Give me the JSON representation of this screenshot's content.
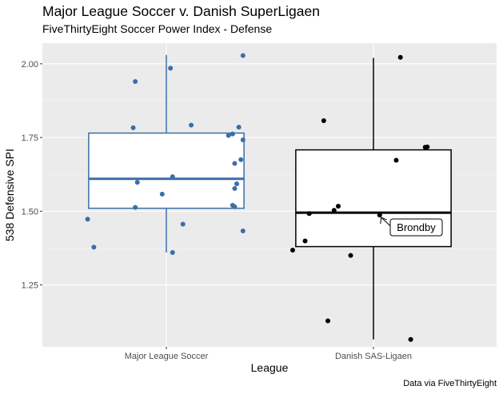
{
  "chart_data": {
    "type": "boxplot",
    "title": "Major League Soccer v. Danish SuperLigaen",
    "subtitle": "FiveThirtyEight Soccer Power Index - Defense",
    "xlabel": "League",
    "ylabel": "538 Defensive SPI",
    "caption": "Data via FiveThirtyEight",
    "ylim": [
      1.04,
      2.07
    ],
    "yticks": [
      1.25,
      1.5,
      1.75,
      2.0
    ],
    "ytick_labels": [
      "1.25",
      "1.50",
      "1.75",
      "2.00"
    ],
    "categories": [
      "Major League Soccer",
      "Danish SAS-Ligaen"
    ],
    "grid": true,
    "boxes": [
      {
        "category": "Major League Soccer",
        "color": "#3b6ea8",
        "whisker_low": 1.36,
        "q1": 1.51,
        "median": 1.61,
        "q3": 1.765,
        "whisker_high": 2.03,
        "points": [
          {
            "x": -0.38,
            "y": 1.473
          },
          {
            "x": -0.35,
            "y": 1.378
          },
          {
            "x": -0.15,
            "y": 1.94
          },
          {
            "x": -0.16,
            "y": 1.783
          },
          {
            "x": -0.14,
            "y": 1.598
          },
          {
            "x": -0.15,
            "y": 1.513
          },
          {
            "x": -0.02,
            "y": 1.558
          },
          {
            "x": 0.02,
            "y": 1.985
          },
          {
            "x": 0.03,
            "y": 1.36
          },
          {
            "x": 0.03,
            "y": 1.617
          },
          {
            "x": 0.08,
            "y": 1.456
          },
          {
            "x": 0.12,
            "y": 1.792
          },
          {
            "x": 0.3,
            "y": 1.757
          },
          {
            "x": 0.32,
            "y": 1.762
          },
          {
            "x": 0.35,
            "y": 1.785
          },
          {
            "x": 0.37,
            "y": 1.742
          },
          {
            "x": 0.33,
            "y": 1.662
          },
          {
            "x": 0.36,
            "y": 1.675
          },
          {
            "x": 0.33,
            "y": 1.577
          },
          {
            "x": 0.34,
            "y": 1.593
          },
          {
            "x": 0.32,
            "y": 1.52
          },
          {
            "x": 0.33,
            "y": 1.515
          },
          {
            "x": 0.37,
            "y": 1.433
          },
          {
            "x": 0.37,
            "y": 2.028
          }
        ]
      },
      {
        "category": "Danish SAS-Ligaen",
        "color": "#000000",
        "whisker_low": 1.065,
        "q1": 1.38,
        "median": 1.495,
        "q3": 1.708,
        "whisker_high": 2.02,
        "points": [
          {
            "x": -0.39,
            "y": 1.368
          },
          {
            "x": -0.33,
            "y": 1.399
          },
          {
            "x": -0.31,
            "y": 1.492
          },
          {
            "x": -0.24,
            "y": 1.807
          },
          {
            "x": -0.19,
            "y": 1.503
          },
          {
            "x": -0.17,
            "y": 1.517
          },
          {
            "x": -0.22,
            "y": 1.128
          },
          {
            "x": -0.11,
            "y": 1.35
          },
          {
            "x": 0.03,
            "y": 1.487
          },
          {
            "x": 0.11,
            "y": 1.673
          },
          {
            "x": 0.13,
            "y": 2.022
          },
          {
            "x": 0.25,
            "y": 1.717
          },
          {
            "x": 0.26,
            "y": 1.718
          },
          {
            "x": 0.18,
            "y": 1.065
          }
        ]
      }
    ],
    "annotations": [
      {
        "text": "Brondby",
        "x_category": "Danish SAS-Ligaen",
        "x": 0.03,
        "y": 1.487
      }
    ]
  }
}
